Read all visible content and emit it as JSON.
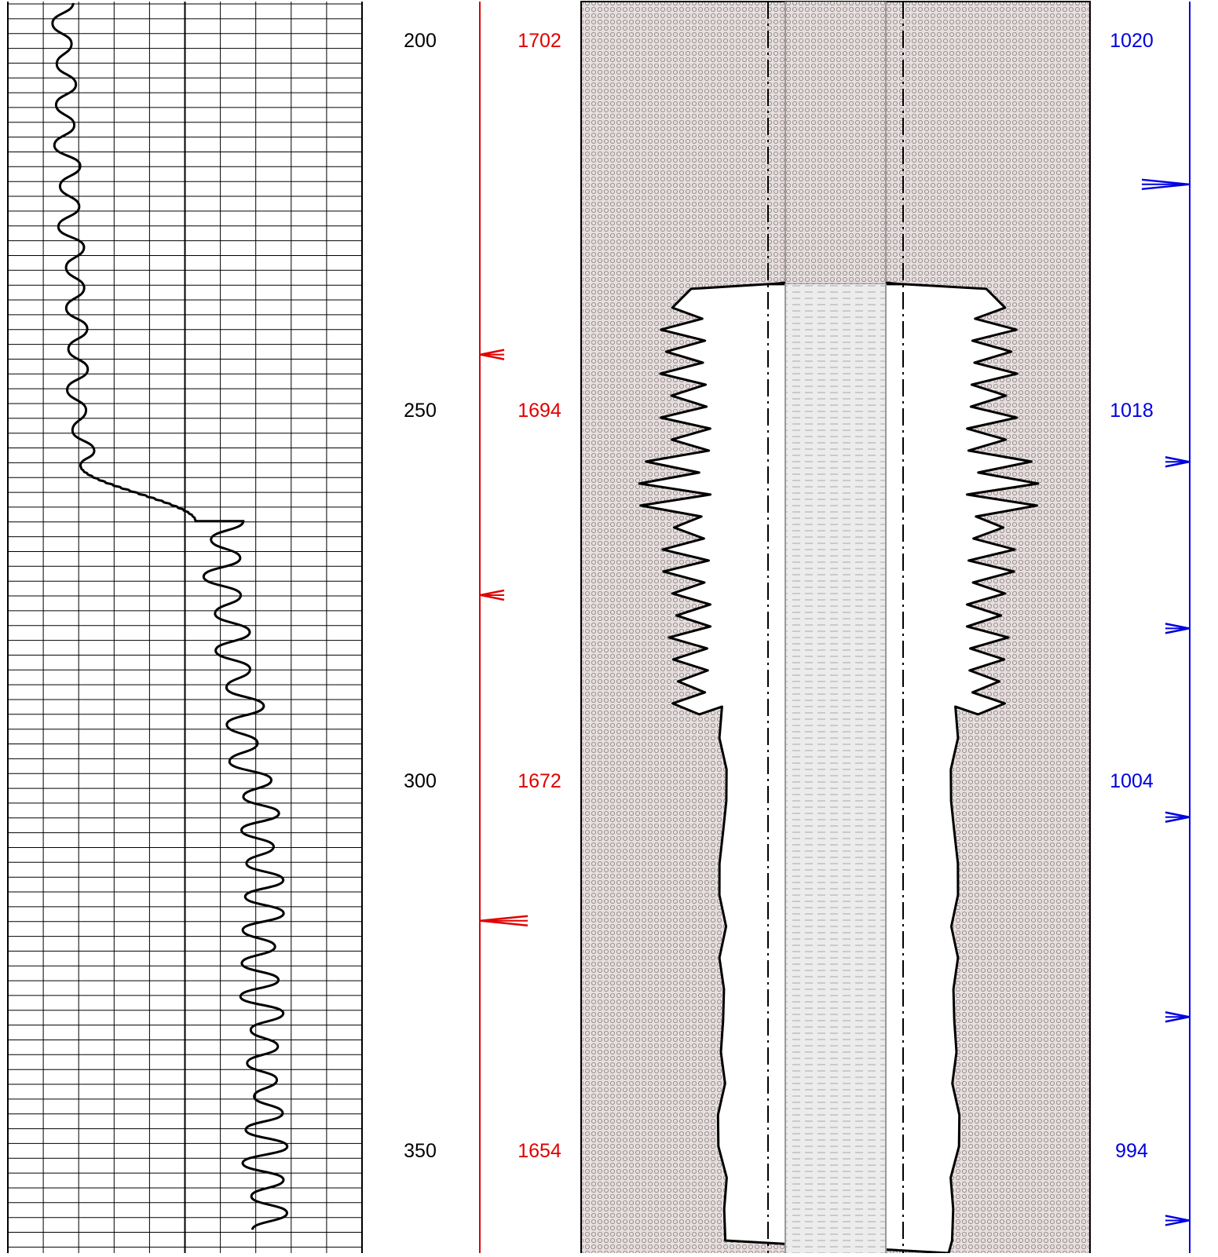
{
  "depth_track": {
    "labels": [
      "200",
      "250",
      "300",
      "350"
    ],
    "color": "#000000"
  },
  "red_track": {
    "labels": [
      "1702",
      "1694",
      "1672",
      "1654"
    ],
    "color": "#e00000",
    "markers": [
      {
        "label_index": 0.85,
        "size": "small"
      },
      {
        "label_index": 1.5,
        "size": "small"
      },
      {
        "label_index": 2.38,
        "size": "large"
      }
    ]
  },
  "blue_track": {
    "labels": [
      "1020",
      "1018",
      "1004",
      "994"
    ],
    "color": "#0000e0",
    "markers": [
      {
        "label_index": 0.39,
        "size": "large"
      },
      {
        "label_index": 1.14,
        "size": "small"
      },
      {
        "label_index": 1.59,
        "size": "small"
      },
      {
        "label_index": 2.1,
        "size": "small"
      },
      {
        "label_index": 2.64,
        "size": "small"
      },
      {
        "label_index": 3.19,
        "size": "small"
      }
    ]
  },
  "curve": {
    "color": "#000000",
    "segments": [
      {
        "from": -0.1,
        "to": 1.15,
        "base": 0.155,
        "amp": 0.035,
        "step": 0.055,
        "drift": 0.05
      },
      {
        "from": 1.15,
        "to": 1.3,
        "transition_to": 0.53
      },
      {
        "from": 1.3,
        "to": 2.0,
        "base": 0.6,
        "amp": 0.055,
        "step": 0.05,
        "drift": 0.08
      },
      {
        "from": 2.0,
        "to": 3.25,
        "base": 0.7,
        "amp": 0.06,
        "step": 0.045,
        "drift": 0.04
      }
    ]
  },
  "wellbore": {
    "fill_color": "#e4dede",
    "inner_color": "#ededed",
    "washout_top_label_index": -0.03,
    "washout_start_label_index": 0.72
  }
}
